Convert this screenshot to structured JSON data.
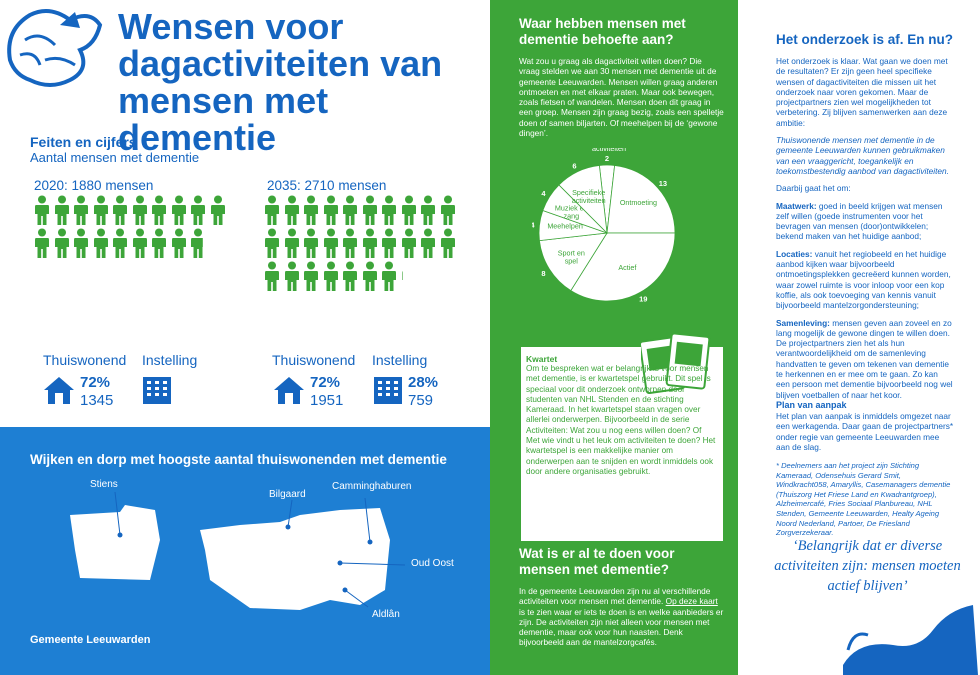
{
  "title": "Wensen voor dagactiviteiten van mensen met dementie",
  "facts": {
    "heading": "Feiten en cijfers",
    "subheading": "Aantal mensen met dementie",
    "year2020": {
      "label": "2020: 1880 mensen",
      "icon_count": 18.8,
      "thuiswonend_label": "Thuiswonend",
      "thuiswonend_pct": "72%",
      "thuiswonend_num": "1345",
      "instelling_label": "Instelling"
    },
    "year2035": {
      "label": "2035: 2710 mensen",
      "icon_count": 27.1,
      "thuiswonend_label": "Thuiswonend",
      "thuiswonend_pct": "72%",
      "thuiswonend_num": "1951",
      "instelling_label": "Instelling",
      "instelling_pct": "28%",
      "instelling_num": "759"
    }
  },
  "map": {
    "heading": "Wijken en dorp met hoogste aantal thuiswonenden met dementie",
    "labels": [
      "Stiens",
      "Bilgaard",
      "Camminghaburen",
      "Oud Oost",
      "Aldlân"
    ],
    "logo": "Gemeente Leeuwarden"
  },
  "needs": {
    "heading": "Waar hebben mensen met dementie behoefte aan?",
    "body": "Wat zou u graag als dagactiviteit willen doen? Die vraag stelden we aan 30 mensen met dementie uit de gemeente Leeuwarden. Mensen willen graag anderen ontmoeten en met elkaar praten. Maar ook bewegen, zoals fietsen of wandelen. Mensen doen dit graag in een groep. Mensen zijn graag bezig, zoals een spelletje doen of samen biljarten. Of meehelpen bij de ‘gewone dingen’."
  },
  "chart_data": {
    "type": "pie",
    "categories": [
      "Individuele activiteiten",
      "Ontmoeting",
      "Actief",
      "Sport en spel",
      "Meehelpen",
      "Muziek en zang",
      "Specifieke activiteiten"
    ],
    "values": [
      2,
      13,
      19,
      8,
      4,
      4,
      6
    ],
    "colors": [
      "#3da539",
      "#3da539",
      "#3da539",
      "#3da539",
      "#3da539",
      "#3da539",
      "#3da539"
    ]
  },
  "kwartet": {
    "title": "Kwartet",
    "text": "Om te bespreken wat er belangrijk is voor mensen met dementie, is er kwartetspel gebruikt. Dit spel is speciaal voor dit onderzoek ontworpen door studenten van NHL Stenden en de stichting Kameraad. In het kwartetspel staan vragen over allerlei onderwerpen. Bijvoorbeeld in de serie Activiteiten: Wat zou u nog eens willen doen? Of Met wie vindt u het leuk om activiteiten te doen? Het kwartetspel is een makkelijke manier om onderwerpen aan te snijden en wordt inmiddels ook door andere organisaties gebruikt."
  },
  "todo": {
    "heading": "Wat is er al te doen voor mensen met dementie?",
    "body_before": "In de gemeente Leeuwarden zijn nu al verschillende activiteiten voor mensen met dementie. ",
    "link": "Op deze kaart",
    "body_after": " is te zien waar er iets te doen is en welke aanbieders er zijn. De activiteiten zijn niet alleen voor mensen met dementie, maar ook voor hun naasten. Denk bijvoorbeeld aan de mantelzorgcafés."
  },
  "research": {
    "heading": "Het onderzoek is af. En nu?",
    "p1": "Het onderzoek is klaar. Wat gaan we doen met de resultaten? Er zijn geen heel specifieke wensen of dagactiviteiten die missen uit het onderzoek naar voren gekomen. Maar de projectpartners zien wel mogelijkheden tot verbetering. Zij blijven samenwerken aan deze ambitie:",
    "p2": "Thuiswonende mensen met dementie in de gemeente Leeuwarden kunnen gebruikmaken van een vraaggericht, toegankelijk en toekomstbestendig aanbod van dagactiviteiten.",
    "p3": "Daarbij gaat het om:",
    "items": [
      {
        "term": "Maatwerk:",
        "text": " goed in beeld krijgen wat mensen zelf willen (goede instrumenten voor het bevragen van mensen (door)ontwikkelen; bekend maken van het huidige aanbod;"
      },
      {
        "term": "Locaties:",
        "text": " vanuit het regiobeeld en het huidige aanbod kijken waar bijvoorbeeld ontmoetingsplekken gecreëerd kunnen worden, waar zowel ruimte is voor inloop voor een kop koffie, als ook toevoeging van kennis vanuit bijvoorbeeld mantelzorgondersteuning;"
      },
      {
        "term": "Samenleving:",
        "text": " mensen geven aan zoveel en zo lang mogelijk de gewone dingen te willen doen. De projectpartners zien het als hun verantwoordelijkheid om de samenleving handvatten te geven om tekenen van dementie te herkennen en er mee om te gaan. Zo kan een persoon met dementie bijvoorbeeld nog wel blijven voetballen of naar het koor."
      }
    ],
    "plan_heading": "Plan van aanpak",
    "plan_body": "Het plan van aanpak is inmiddels omgezet naar een werkagenda. Daar gaan de projectpartners* onder regie van gemeente Leeuwarden mee aan de slag.",
    "footnote": "* Deelnemers aan het project zijn Stichting Kameraad, Odensehuis Gerard Smit, Windkracht058, Amaryllis, Casemanagers dementie (Thuiszorg Het Friese Land en Kwadrantgroep), Alzheimercafé, Fries Sociaal Planbureau, NHL Stenden, Gemeente Leeuwarden, Healty Ageing Noord Nederland, Partoer, De Friesland Zorgverzekeraar.",
    "quote": "‘Belangrijk dat er diverse activiteiten zijn: mensen moeten actief blijven’"
  }
}
